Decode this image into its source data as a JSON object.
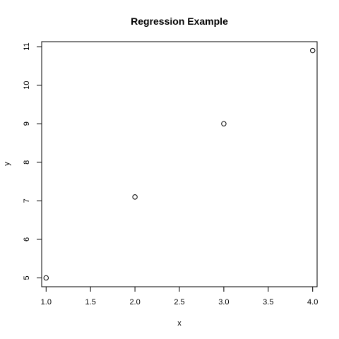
{
  "chart_data": {
    "type": "scatter",
    "title": "Regression Example",
    "xlabel": "x",
    "ylabel": "y",
    "xlim": [
      0.95,
      4.05
    ],
    "ylim": [
      4.77,
      11.13
    ],
    "x_ticks": [
      1.0,
      1.5,
      2.0,
      2.5,
      3.0,
      3.5,
      4.0
    ],
    "x_tick_labels": [
      "1.0",
      "1.5",
      "2.0",
      "2.5",
      "3.0",
      "3.5",
      "4.0"
    ],
    "y_ticks": [
      5,
      6,
      7,
      8,
      9,
      10,
      11
    ],
    "y_tick_labels": [
      "5",
      "6",
      "7",
      "8",
      "9",
      "10",
      "11"
    ],
    "grid": false,
    "marker": "open-circle",
    "points": [
      {
        "x": 1,
        "y": 5.0
      },
      {
        "x": 2,
        "y": 7.1
      },
      {
        "x": 3,
        "y": 9.0
      },
      {
        "x": 4,
        "y": 10.9
      }
    ]
  }
}
